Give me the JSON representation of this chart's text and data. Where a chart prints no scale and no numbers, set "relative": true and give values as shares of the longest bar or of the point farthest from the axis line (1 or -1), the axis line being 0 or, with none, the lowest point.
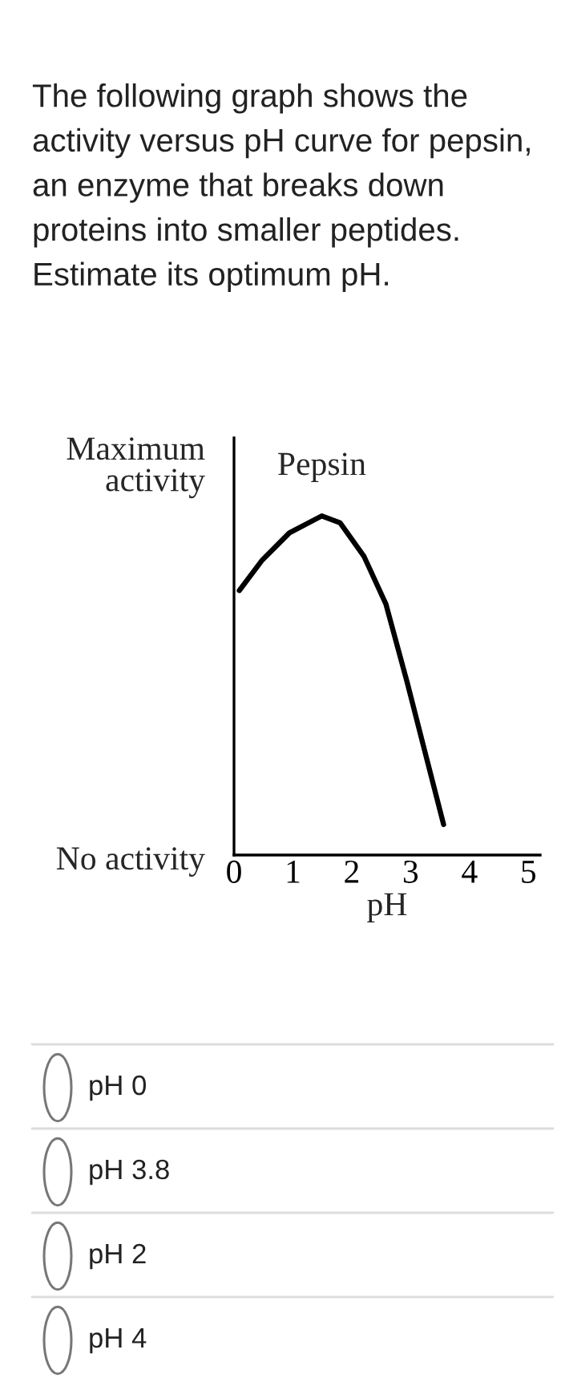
{
  "chart_data": {
    "type": "line",
    "title": "The following graph shows the activity versus pH curve for pepsin, an enzyme that breaks down proteins into smaller peptides. Estimate its optimum pH.",
    "xlabel": "pH",
    "relative": true,
    "xlim": [
      0,
      5.2
    ],
    "xticks": [
      0,
      1,
      2,
      3,
      4,
      5
    ],
    "grid": false,
    "legend": false,
    "marker": "none",
    "line_style": "solid",
    "x": [
      0.09,
      0.48,
      0.94,
      1.49,
      1.8,
      2.21,
      2.58,
      2.94,
      3.22,
      3.56
    ],
    "series": [
      {
        "name": "Pepsin",
        "color": "#000000",
        "values": [
          0.78,
          0.87,
          0.95,
          1.0,
          0.98,
          0.88,
          0.74,
          0.51,
          0.32,
          0.09
        ]
      }
    ],
    "annotations": [
      "Maximum activity",
      "No activity",
      "pH 0",
      "pH 3.8",
      "pH 2",
      "pH 4"
    ]
  }
}
